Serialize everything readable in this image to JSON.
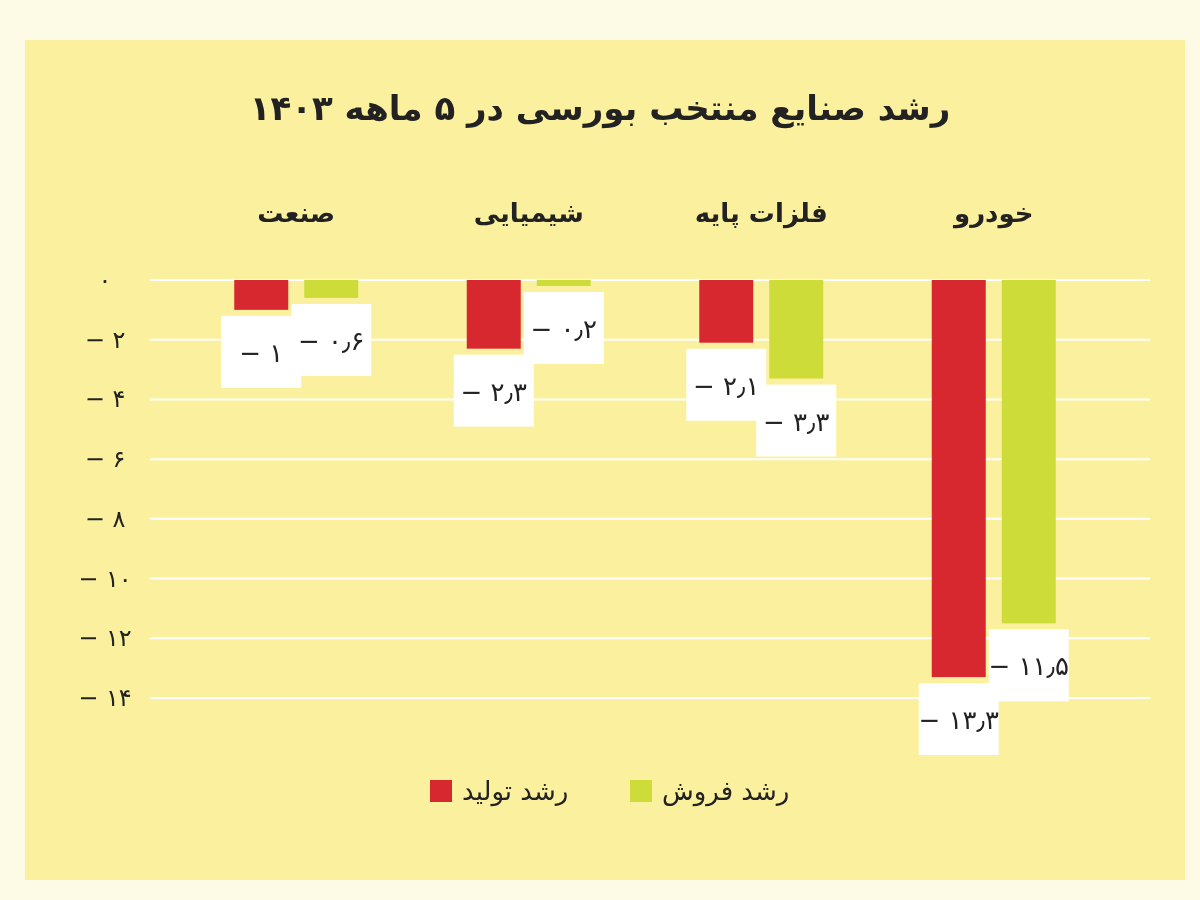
{
  "chart_data": {
    "type": "bar",
    "title": "رشد صنایع منتخب بورسی در ۵ ماهه ۱۴۰۳",
    "categories": [
      "صنعت",
      "شیمیایی",
      "فلزات پایه",
      "خودرو"
    ],
    "series": [
      {
        "name": "رشد تولید",
        "color": "#d7282f",
        "values": [
          -1,
          -2.3,
          -2.1,
          -13.3
        ],
        "value_labels": [
          "− ۱",
          "− ۲٫۳",
          "− ۲٫۱",
          "− ۱۳٫۳"
        ]
      },
      {
        "name": "رشد فروش",
        "color": "#cddc39",
        "values": [
          -0.6,
          -0.2,
          -3.3,
          -11.5
        ],
        "value_labels": [
          "− ۰٫۶",
          "− ۰٫۲",
          "− ۳٫۳",
          "− ۱۱٫۵"
        ]
      }
    ],
    "ylim": [
      -14,
      0
    ],
    "yticks": [
      {
        "value": 0,
        "label": "۰"
      },
      {
        "value": -2,
        "label": "− ۲"
      },
      {
        "value": -4,
        "label": "− ۴"
      },
      {
        "value": -6,
        "label": "− ۶"
      },
      {
        "value": -8,
        "label": "− ۸"
      },
      {
        "value": -10,
        "label": "− ۱۰"
      },
      {
        "value": -12,
        "label": "− ۱۲"
      },
      {
        "value": -14,
        "label": "− ۱۴"
      }
    ],
    "grid": "y",
    "legend": "bottom"
  }
}
